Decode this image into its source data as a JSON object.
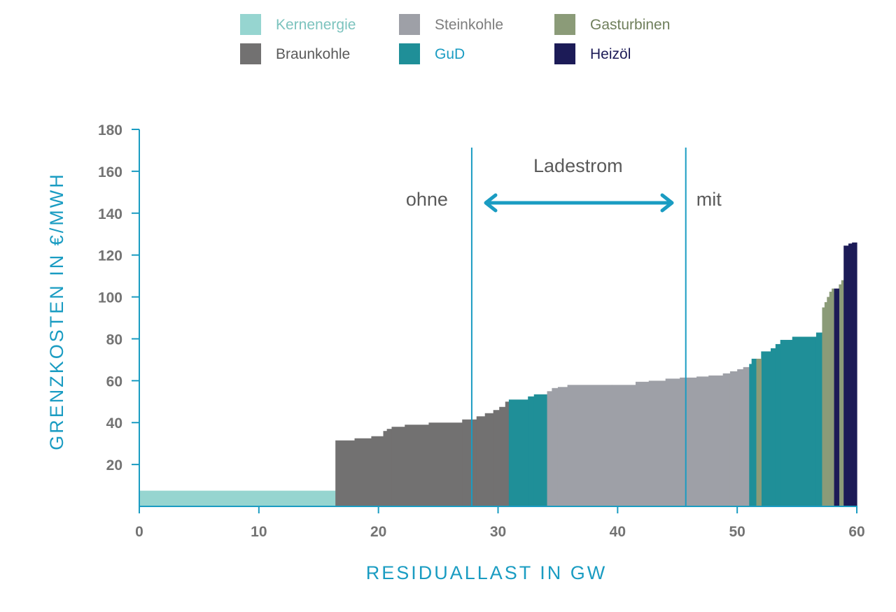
{
  "colors": {
    "Kernenergie": "#96d5d0",
    "Braunkohle": "#727171",
    "Steinkohle": "#9ea0a7",
    "GuD": "#1f8f98",
    "Gasturbinen": "#8b9b78",
    "Heizöl": "#1c1b57",
    "axis": "#1a9cc2",
    "tick_text": "#737373",
    "annotation_text": "#5a5a5a",
    "arrow": "#1a9cc2"
  },
  "legend": [
    {
      "label": "Kernenergie",
      "color": "#96d5d0",
      "text_color": "#7cc3be"
    },
    {
      "label": "Steinkohle",
      "color": "#9ea0a7",
      "text_color": "#7d7d7d"
    },
    {
      "label": "Gasturbinen",
      "color": "#8b9b78",
      "text_color": "#6f7f5c"
    },
    {
      "label": "Braunkohle",
      "color": "#727171",
      "text_color": "#5a5a5a"
    },
    {
      "label": "GuD",
      "color": "#1f8f98",
      "text_color": "#1a9cc2"
    },
    {
      "label": "Heizöl",
      "color": "#1c1b57",
      "text_color": "#1c1b57"
    }
  ],
  "chart_data": {
    "type": "area",
    "xlabel": "RESIDUALLAST IN GW",
    "ylabel": "GRENZKOSTEN IN €/MWH",
    "xlim": [
      0,
      60
    ],
    "ylim": [
      0,
      180
    ],
    "xticks": [
      0,
      10,
      20,
      30,
      40,
      50,
      60
    ],
    "yticks": [
      20,
      40,
      60,
      80,
      100,
      120,
      140,
      160,
      180
    ],
    "grid": false,
    "legend_position": "top",
    "series": [
      {
        "name": "Kernenergie",
        "steps": [
          {
            "x0": 0,
            "x1": 16.4,
            "y": 7.5
          }
        ]
      },
      {
        "name": "Braunkohle",
        "steps": [
          {
            "x0": 16.4,
            "x1": 18.0,
            "y": 31.5
          },
          {
            "x0": 18.0,
            "x1": 19.4,
            "y": 32.5
          },
          {
            "x0": 19.4,
            "x1": 20.4,
            "y": 33.5
          },
          {
            "x0": 20.4,
            "x1": 20.7,
            "y": 36.0
          },
          {
            "x0": 20.7,
            "x1": 21.1,
            "y": 37.0
          },
          {
            "x0": 21.1,
            "x1": 22.2,
            "y": 38.0
          },
          {
            "x0": 22.2,
            "x1": 24.2,
            "y": 39.0
          },
          {
            "x0": 24.2,
            "x1": 27.0,
            "y": 40.0
          },
          {
            "x0": 27.0,
            "x1": 28.2,
            "y": 41.5
          },
          {
            "x0": 28.2,
            "x1": 28.9,
            "y": 43.0
          },
          {
            "x0": 28.9,
            "x1": 29.6,
            "y": 44.5
          },
          {
            "x0": 29.6,
            "x1": 30.1,
            "y": 46.0
          },
          {
            "x0": 30.1,
            "x1": 30.6,
            "y": 47.5
          },
          {
            "x0": 30.6,
            "x1": 30.9,
            "y": 50.0
          }
        ]
      },
      {
        "name": "GuD",
        "steps": [
          {
            "x0": 30.9,
            "x1": 32.5,
            "y": 51.0
          },
          {
            "x0": 32.5,
            "x1": 33.0,
            "y": 52.5
          },
          {
            "x0": 33.0,
            "x1": 34.1,
            "y": 53.5
          }
        ]
      },
      {
        "name": "Steinkohle",
        "steps": [
          {
            "x0": 34.1,
            "x1": 34.5,
            "y": 55.0
          },
          {
            "x0": 34.5,
            "x1": 35.0,
            "y": 56.5
          },
          {
            "x0": 35.0,
            "x1": 35.8,
            "y": 57.0
          },
          {
            "x0": 35.8,
            "x1": 39.5,
            "y": 58.0
          },
          {
            "x0": 39.5,
            "x1": 41.5,
            "y": 58.0
          },
          {
            "x0": 41.5,
            "x1": 42.6,
            "y": 59.5
          },
          {
            "x0": 42.6,
            "x1": 44.0,
            "y": 60.0
          },
          {
            "x0": 44.0,
            "x1": 45.2,
            "y": 61.0
          },
          {
            "x0": 45.2,
            "x1": 46.6,
            "y": 61.5
          },
          {
            "x0": 46.6,
            "x1": 47.6,
            "y": 62.0
          },
          {
            "x0": 47.6,
            "x1": 48.8,
            "y": 62.5
          },
          {
            "x0": 48.8,
            "x1": 49.4,
            "y": 63.5
          },
          {
            "x0": 49.4,
            "x1": 50.0,
            "y": 64.5
          },
          {
            "x0": 50.0,
            "x1": 50.5,
            "y": 65.5
          },
          {
            "x0": 50.5,
            "x1": 51.0,
            "y": 66.5
          }
        ]
      },
      {
        "name": "GuD",
        "steps": [
          {
            "x0": 51.0,
            "x1": 51.2,
            "y": 68.0
          },
          {
            "x0": 51.2,
            "x1": 51.6,
            "y": 70.5
          },
          {
            "x0": 52.0,
            "x1": 52.8,
            "y": 74.0
          },
          {
            "x0": 52.8,
            "x1": 53.2,
            "y": 75.5
          },
          {
            "x0": 53.2,
            "x1": 53.6,
            "y": 77.5
          },
          {
            "x0": 53.6,
            "x1": 54.6,
            "y": 79.5
          },
          {
            "x0": 54.6,
            "x1": 56.6,
            "y": 81.0
          },
          {
            "x0": 56.6,
            "x1": 57.1,
            "y": 83.0
          }
        ]
      },
      {
        "name": "Gasturbinen",
        "steps": [
          {
            "x0": 51.6,
            "x1": 52.0,
            "y": 70.5
          },
          {
            "x0": 57.1,
            "x1": 57.3,
            "y": 95.0
          },
          {
            "x0": 57.3,
            "x1": 57.5,
            "y": 97.5
          },
          {
            "x0": 57.5,
            "x1": 57.7,
            "y": 100.0
          },
          {
            "x0": 57.7,
            "x1": 57.9,
            "y": 102.5
          },
          {
            "x0": 57.9,
            "x1": 58.1,
            "y": 104.0
          },
          {
            "x0": 58.5,
            "x1": 58.7,
            "y": 106.0
          },
          {
            "x0": 58.7,
            "x1": 58.9,
            "y": 108.0
          }
        ]
      },
      {
        "name": "Heizöl",
        "steps": [
          {
            "x0": 58.1,
            "x1": 58.3,
            "y": 104.0
          },
          {
            "x0": 58.3,
            "x1": 58.5,
            "y": 104.0
          },
          {
            "x0": 58.9,
            "x1": 59.3,
            "y": 124.5
          },
          {
            "x0": 59.3,
            "x1": 59.6,
            "y": 125.5
          },
          {
            "x0": 59.6,
            "x1": 60.0,
            "y": 126.0
          }
        ]
      }
    ],
    "annotations": {
      "line_ohne_x": 27.8,
      "line_mit_x": 45.7,
      "label_ohne": "ohne",
      "label_mit": "mit",
      "label_range": "Ladestrom"
    }
  }
}
